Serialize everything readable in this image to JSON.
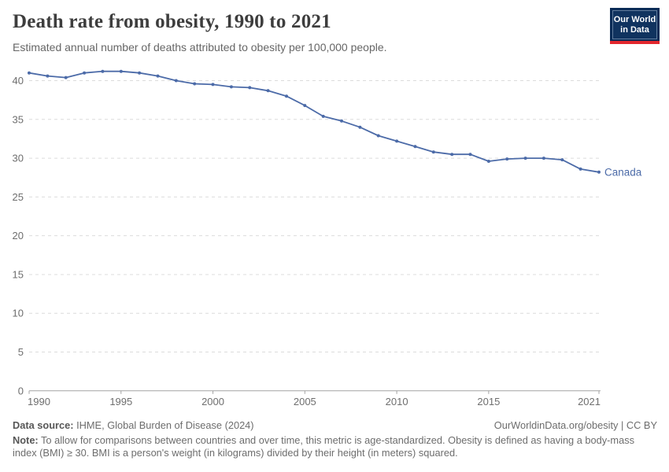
{
  "header": {
    "title": "Death rate from obesity, 1990 to 2021",
    "subtitle": "Estimated annual number of deaths attributed to obesity per 100,000 people.",
    "logo": {
      "line1": "Our World",
      "line2": "in Data"
    }
  },
  "chart_data": {
    "type": "line",
    "title": "Death rate from obesity, 1990 to 2021",
    "subtitle": "Estimated annual number of deaths attributed to obesity per 100,000 people.",
    "xlabel": "",
    "ylabel": "",
    "x": [
      1990,
      1991,
      1992,
      1993,
      1994,
      1995,
      1996,
      1997,
      1998,
      1999,
      2000,
      2001,
      2002,
      2003,
      2004,
      2005,
      2006,
      2007,
      2008,
      2009,
      2010,
      2011,
      2012,
      2013,
      2014,
      2015,
      2016,
      2017,
      2018,
      2019,
      2020,
      2021
    ],
    "series": [
      {
        "name": "Canada",
        "color": "#4c6ba8",
        "values": [
          41.0,
          40.6,
          40.4,
          41.0,
          41.2,
          41.2,
          41.0,
          40.6,
          40.0,
          39.6,
          39.5,
          39.2,
          39.1,
          38.7,
          38.0,
          36.8,
          35.4,
          34.8,
          34.0,
          32.9,
          32.2,
          31.5,
          30.8,
          30.5,
          30.5,
          29.6,
          29.9,
          30.0,
          30.0,
          29.8,
          28.6,
          28.2
        ]
      }
    ],
    "xticks": [
      1990,
      1995,
      2000,
      2005,
      2010,
      2015,
      2021
    ],
    "yticks": [
      0,
      5,
      10,
      15,
      20,
      25,
      30,
      35,
      40
    ],
    "ylim": [
      0,
      41.5
    ],
    "grid": "horizontal-dashed",
    "legend": "line-end-label"
  },
  "footer": {
    "datasource_label": "Data source:",
    "datasource_value": " IHME, Global Burden of Disease (2024)",
    "rights": "OurWorldinData.org/obesity | CC BY",
    "note_label": "Note:",
    "note_value": " To allow for comparisons between countries and over time, this metric is age-standardized. Obesity is defined as having a body-mass index (BMI) ≥ 30. BMI is a person's weight (in kilograms) divided by their height (in meters) squared."
  },
  "colors": {
    "line_blue": "#4c6ba8",
    "logo_navy": "#0a2b56",
    "logo_red": "#e2262d",
    "gridline": "#dcdcdc",
    "axis": "#a3a3a3",
    "tick_text": "#6e6e6e"
  }
}
